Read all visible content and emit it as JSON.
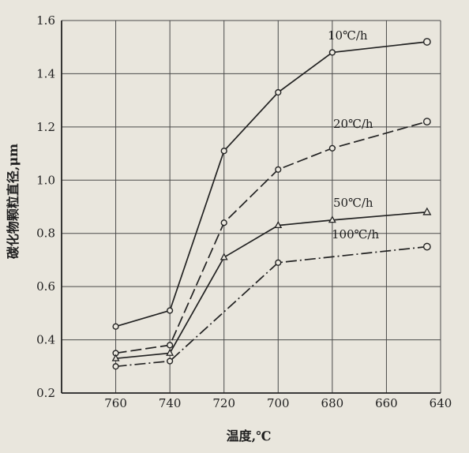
{
  "chart_data": {
    "type": "line",
    "xlabel": "温度,℃",
    "ylabel": "碳化物颗粒直径,μm",
    "x_ticks": [
      "760",
      "740",
      "720",
      "700",
      "680",
      "660",
      "640"
    ],
    "y_ticks": [
      "0.2",
      "0.4",
      "0.6",
      "0.8",
      "1.0",
      "1.2",
      "1.4",
      "1.6"
    ],
    "xlim": [
      780,
      640
    ],
    "ylim": [
      0.2,
      1.6
    ],
    "x_axis_reversed": true,
    "grid": true,
    "series": [
      {
        "name": "10℃/h",
        "marker": "circle",
        "line_style": "solid",
        "x": [
          760,
          740,
          720,
          700,
          680,
          645
        ],
        "y": [
          0.45,
          0.51,
          1.11,
          1.33,
          1.48,
          1.52
        ]
      },
      {
        "name": "20℃/h",
        "marker": "circle",
        "line_style": "dashed",
        "x": [
          760,
          740,
          720,
          700,
          680,
          645
        ],
        "y": [
          0.35,
          0.38,
          0.84,
          1.04,
          1.12,
          1.22
        ]
      },
      {
        "name": "50℃/h",
        "marker": "triangle",
        "line_style": "solid",
        "x": [
          760,
          740,
          720,
          700,
          680,
          645
        ],
        "y": [
          0.33,
          0.35,
          0.71,
          0.83,
          0.85,
          0.88
        ]
      },
      {
        "name": "100℃/h",
        "marker": "circle",
        "line_style": "dashdot",
        "x": [
          760,
          740,
          700,
          645
        ],
        "y": [
          0.3,
          0.32,
          0.69,
          0.75
        ]
      }
    ]
  }
}
